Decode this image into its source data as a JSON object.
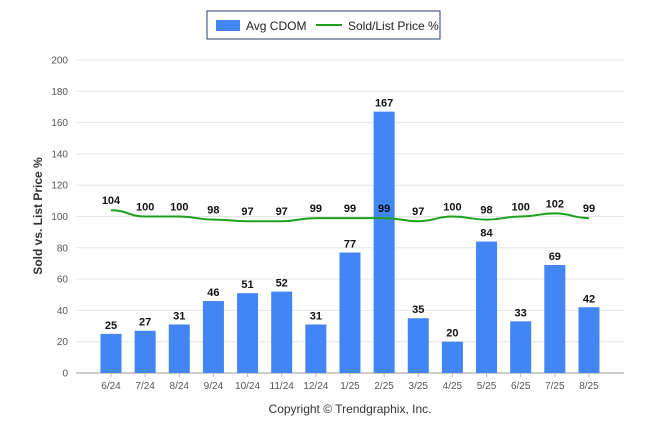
{
  "chart_data": {
    "type": "bar",
    "categories": [
      "6/24",
      "7/24",
      "8/24",
      "9/24",
      "10/24",
      "11/24",
      "12/24",
      "1/25",
      "2/25",
      "3/25",
      "4/25",
      "5/25",
      "6/25",
      "7/25",
      "8/25"
    ],
    "series": [
      {
        "name": "Avg CDOM",
        "type": "bar",
        "color": "#4285f4",
        "values": [
          25,
          27,
          31,
          46,
          51,
          52,
          31,
          77,
          167,
          35,
          20,
          84,
          33,
          69,
          42
        ]
      },
      {
        "name": "Sold/List Price %",
        "type": "line",
        "color": "#1ea01e",
        "values": [
          104,
          100,
          100,
          98,
          97,
          97,
          99,
          99,
          99,
          97,
          100,
          98,
          100,
          102,
          99
        ]
      }
    ],
    "ylabel": "Sold vs. List Price %",
    "xlabel": "",
    "ylim": [
      0,
      200
    ],
    "yticks": [
      0,
      20,
      40,
      60,
      80,
      100,
      120,
      140,
      160,
      180,
      200
    ],
    "grid": true,
    "legend_position": "top-center",
    "footer": "Copyright © Trendgraphix, Inc."
  }
}
